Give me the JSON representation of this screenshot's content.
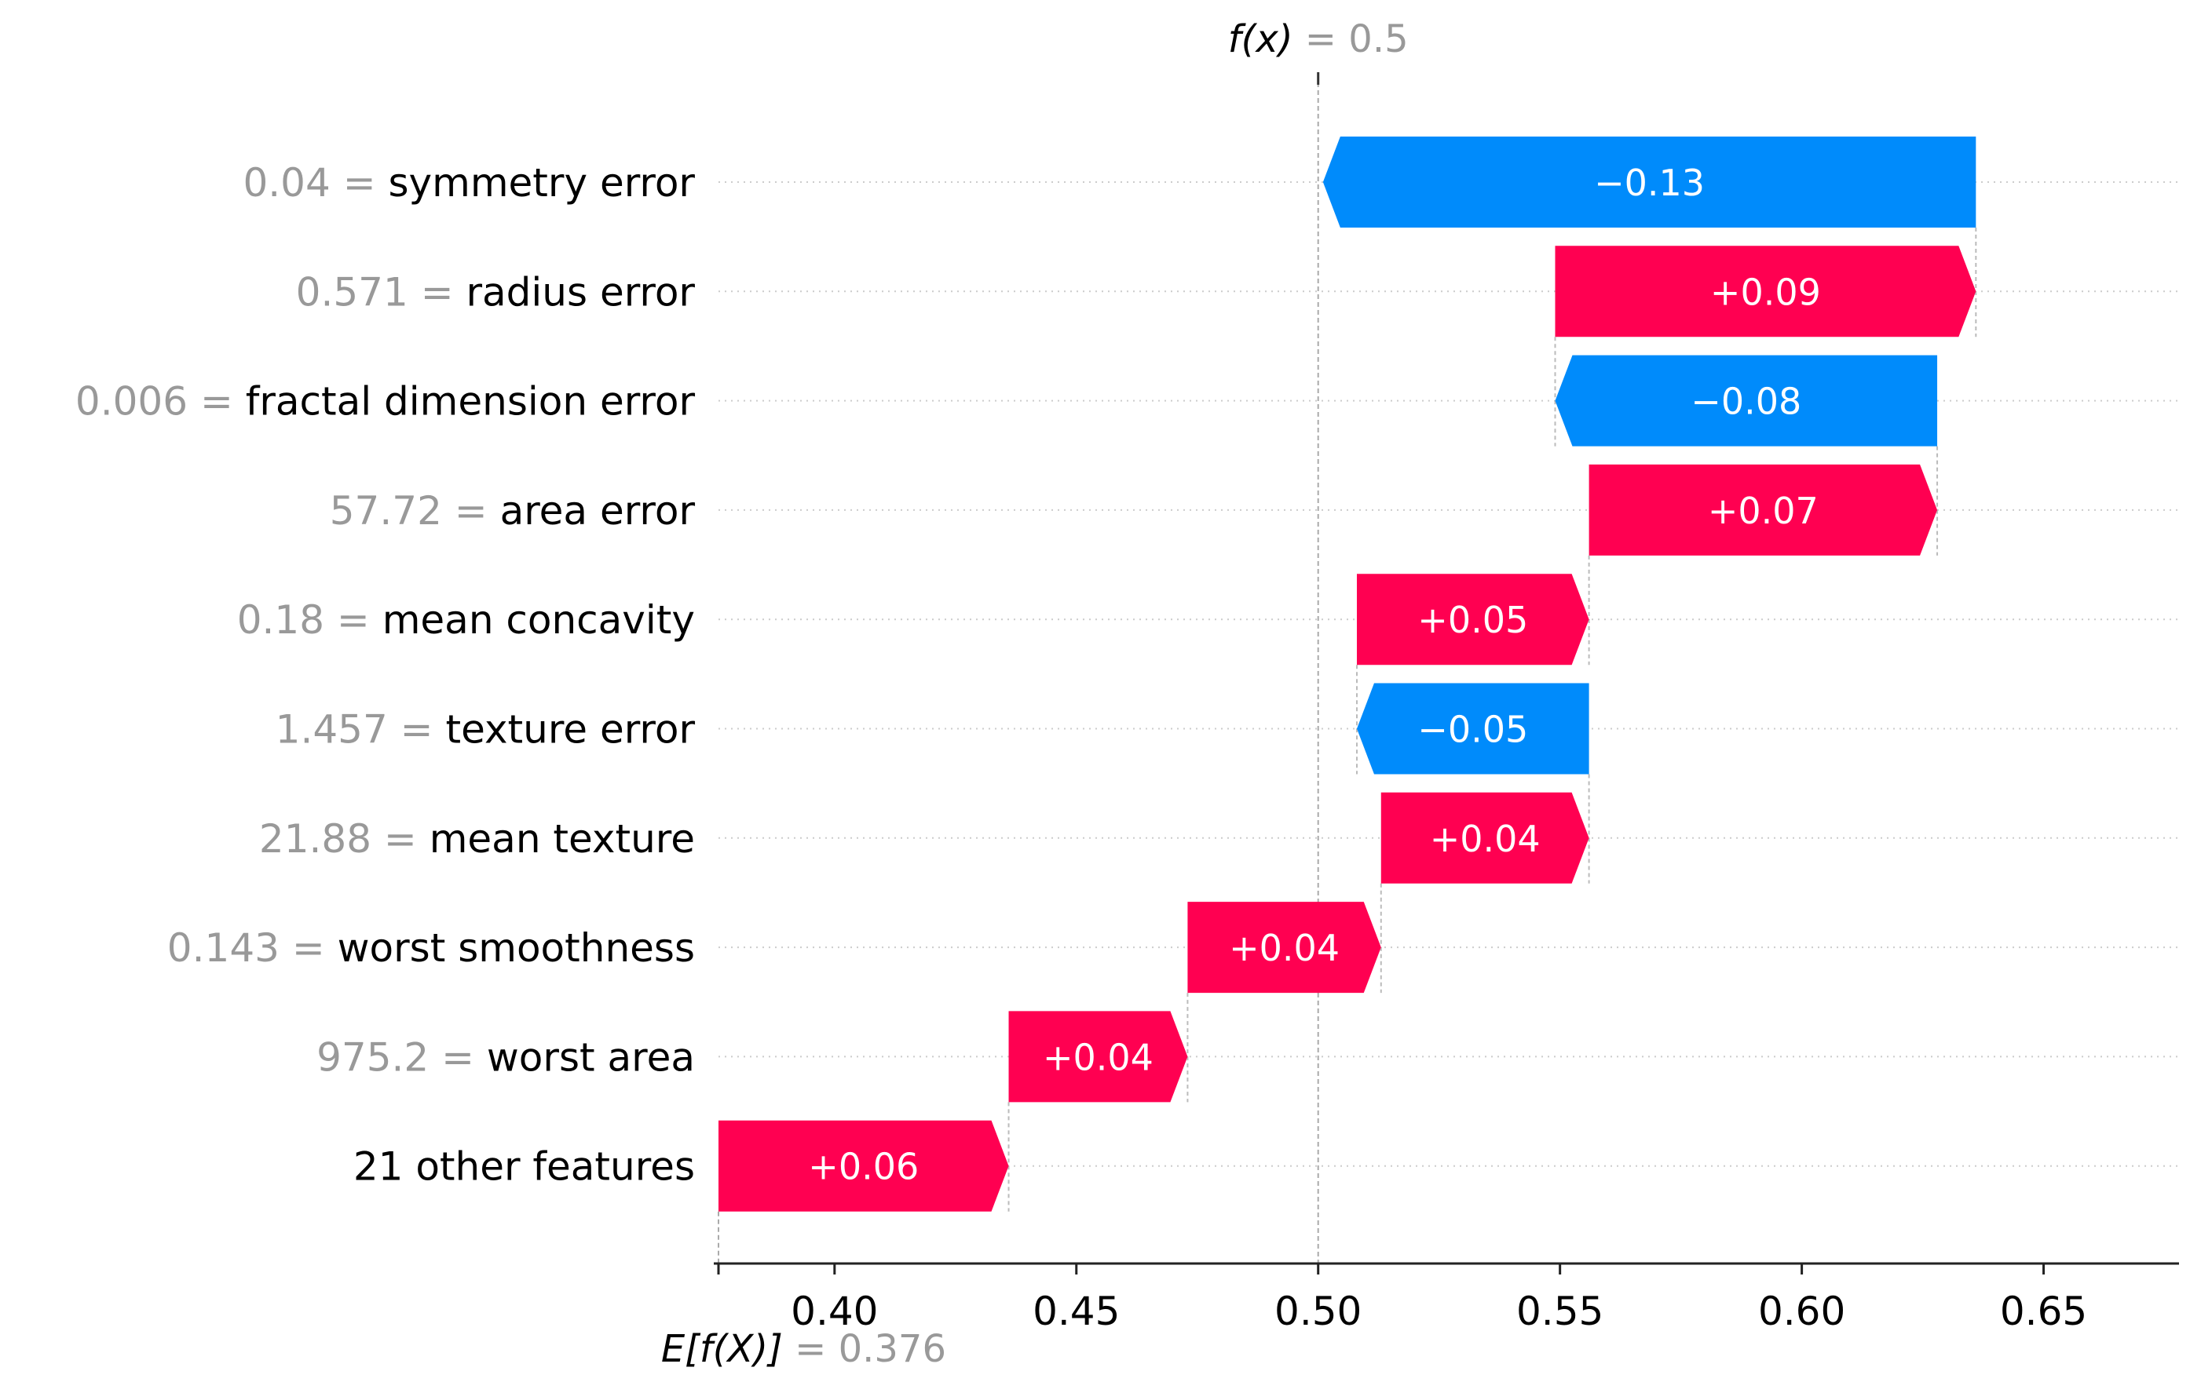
{
  "chart_data": {
    "type": "waterfall",
    "base_value": 0.376,
    "base_label": "E[f(X)]",
    "base_value_label": "0.376",
    "output_value": 0.5,
    "output_label": "f(x)",
    "output_value_label": "0.5",
    "xlim": [
      0.376,
      0.678
    ],
    "xticks": [
      0.4,
      0.45,
      0.5,
      0.55,
      0.6,
      0.65
    ],
    "xtick_labels": [
      "0.40",
      "0.45",
      "0.50",
      "0.55",
      "0.60",
      "0.65"
    ],
    "rows": [
      {
        "value_text": "0.04",
        "feature": "symmetry error",
        "shap": -0.135,
        "label": "−0.13"
      },
      {
        "value_text": "0.571",
        "feature": "radius error",
        "shap": 0.087,
        "label": "+0.09"
      },
      {
        "value_text": "0.006",
        "feature": "fractal dimension error",
        "shap": -0.079,
        "label": "−0.08"
      },
      {
        "value_text": "57.72",
        "feature": "area error",
        "shap": 0.072,
        "label": "+0.07"
      },
      {
        "value_text": "0.18",
        "feature": "mean concavity",
        "shap": 0.048,
        "label": "+0.05"
      },
      {
        "value_text": "1.457",
        "feature": "texture error",
        "shap": -0.048,
        "label": "−0.05"
      },
      {
        "value_text": "21.88",
        "feature": "mean texture",
        "shap": 0.043,
        "label": "+0.04"
      },
      {
        "value_text": "0.143",
        "feature": "worst smoothness",
        "shap": 0.04,
        "label": "+0.04"
      },
      {
        "value_text": "975.2",
        "feature": "worst area",
        "shap": 0.037,
        "label": "+0.04"
      },
      {
        "value_text": "",
        "feature": "21 other features",
        "shap": 0.06,
        "label": "+0.06"
      }
    ],
    "colors": {
      "positive": "#ff0051",
      "negative": "#008bfb"
    },
    "grid": "dotted horizontal per row"
  }
}
